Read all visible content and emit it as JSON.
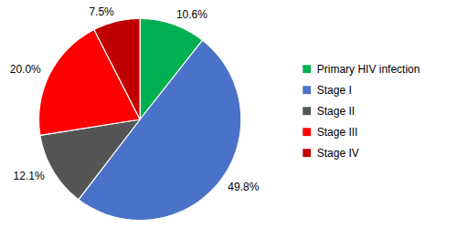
{
  "chart_data": {
    "type": "pie",
    "categories": [
      "Primary HIV infection",
      "Stage I",
      "Stage II",
      "Stage III",
      "Stage IV"
    ],
    "values": [
      10.6,
      49.8,
      12.1,
      20.0,
      7.5
    ],
    "value_labels": [
      "10.6%",
      "49.8%",
      "12.1%",
      "20.0%",
      "7.5%"
    ],
    "colors": [
      "#00b050",
      "#4a72c8",
      "#555555",
      "#ff0000",
      "#c00000"
    ],
    "data_labels": true,
    "legend": "right"
  }
}
